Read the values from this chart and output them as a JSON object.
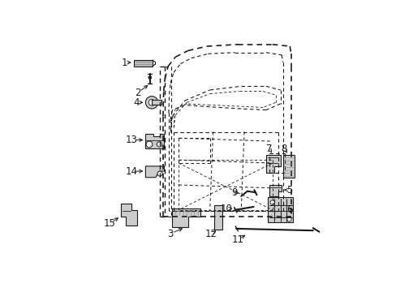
{
  "bg_color": "#ffffff",
  "fig_width": 4.89,
  "fig_height": 3.6,
  "dpi": 100,
  "line_color": "#1a1a1a",
  "text_color": "#1a1a1a",
  "font_size": 8.5
}
